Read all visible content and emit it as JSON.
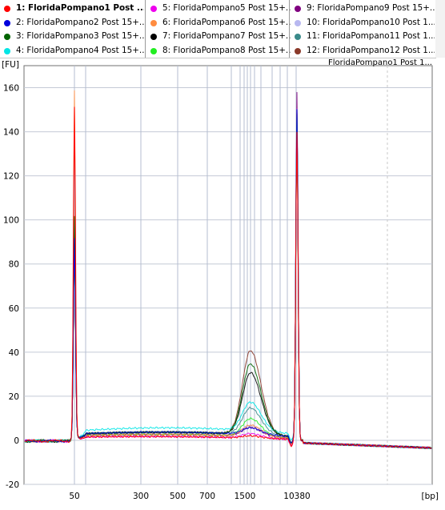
{
  "legend": {
    "items": [
      {
        "label": "1: FloridaPompano1 Post ...",
        "color": "#ff0000",
        "selected": true
      },
      {
        "label": "2: FloridaPompano2 Post 15+...",
        "color": "#0000dd"
      },
      {
        "label": "3: FloridaPompano3 Post 15+...",
        "color": "#006400"
      },
      {
        "label": "4: FloridaPompano4 Post 15+...",
        "color": "#00e5e5"
      },
      {
        "label": "5: FloridaPompano5 Post 15+...",
        "color": "#ee00ee"
      },
      {
        "label": "6: FloridaPompano6 Post 15+...",
        "color": "#ff8c40"
      },
      {
        "label": "7: FloridaPompano7 Post 15+...",
        "color": "#000000"
      },
      {
        "label": "8: FloridaPompano8 Post 15+...",
        "color": "#22ee22"
      },
      {
        "label": "9: FloridaPompano9 Post 15+...",
        "color": "#800080"
      },
      {
        "label": "10: FloridaPompano10 Post 1...",
        "color": "#b8b8f0"
      },
      {
        "label": "11: FloridaPompano11 Post 1...",
        "color": "#3a8a8a"
      },
      {
        "label": "12: FloridaPompano12 Post 1...",
        "color": "#8b3a2a"
      }
    ]
  },
  "chart_data": {
    "type": "line",
    "title": "FloridaPompano1 Post 1...",
    "ylabel": "[FU]",
    "xlabel": "[bp]",
    "ylim": [
      -20,
      170
    ],
    "y_ticks": [
      -20,
      0,
      20,
      40,
      60,
      80,
      100,
      120,
      140,
      160
    ],
    "x_ticks": [
      "50",
      "300",
      "500",
      "700",
      "1500",
      "10380"
    ],
    "grid": true,
    "series": [
      {
        "color": "#ff0000",
        "peaks": {
          "lower_marker": 150,
          "upper_marker": 140,
          "smear": 2,
          "hump": 1
        }
      },
      {
        "color": "#0000dd",
        "peaks": {
          "lower_marker": 90,
          "upper_marker": 150,
          "smear": 4,
          "hump": 3
        }
      },
      {
        "color": "#006400",
        "peaks": {
          "lower_marker": 100,
          "upper_marker": 148,
          "smear": 4,
          "hump": 32
        }
      },
      {
        "color": "#00e5e5",
        "peaks": {
          "lower_marker": 96,
          "upper_marker": 150,
          "smear": 6,
          "hump": 13
        }
      },
      {
        "color": "#ee00ee",
        "peaks": {
          "lower_marker": 94,
          "upper_marker": 150,
          "smear": 2,
          "hump": 2
        }
      },
      {
        "color": "#ff8c40",
        "peaks": {
          "lower_marker": 157,
          "upper_marker": 150,
          "smear": 3,
          "hump": 5
        }
      },
      {
        "color": "#000000",
        "peaks": {
          "lower_marker": 92,
          "upper_marker": 145,
          "smear": 4,
          "hump": 28
        }
      },
      {
        "color": "#22ee22",
        "peaks": {
          "lower_marker": 88,
          "upper_marker": 140,
          "smear": 3,
          "hump": 8
        }
      },
      {
        "color": "#800080",
        "peaks": {
          "lower_marker": 92,
          "upper_marker": 158,
          "smear": 3,
          "hump": 4
        }
      },
      {
        "color": "#b8b8f0",
        "peaks": {
          "lower_marker": 95,
          "upper_marker": 150,
          "smear": 4,
          "hump": 4
        }
      },
      {
        "color": "#3a8a8a",
        "peaks": {
          "lower_marker": 96,
          "upper_marker": 147,
          "smear": 4,
          "hump": 12
        }
      },
      {
        "color": "#8b3a2a",
        "peaks": {
          "lower_marker": 100,
          "upper_marker": 150,
          "smear": 4,
          "hump": 38
        }
      }
    ]
  }
}
